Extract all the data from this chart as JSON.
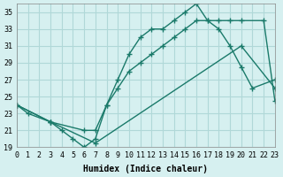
{
  "xlabel": "Humidex (Indice chaleur)",
  "ylabel": "",
  "bg_color": "#d6f0f0",
  "grid_color": "#b0d8d8",
  "line_color": "#1a7a6a",
  "xlim": [
    0,
    23
  ],
  "ylim": [
    19,
    36
  ],
  "xticks": [
    0,
    1,
    2,
    3,
    4,
    5,
    6,
    7,
    8,
    9,
    10,
    11,
    12,
    13,
    14,
    15,
    16,
    17,
    18,
    19,
    20,
    21,
    22,
    23
  ],
  "yticks": [
    19,
    21,
    23,
    25,
    27,
    29,
    31,
    33,
    35
  ],
  "line1_x": [
    0,
    1,
    3,
    4,
    5,
    6,
    7,
    8,
    9,
    10,
    11,
    12,
    13,
    14,
    15,
    16,
    17,
    18,
    19,
    20,
    21,
    23
  ],
  "line1_y": [
    24,
    23,
    22,
    21,
    20,
    19,
    20,
    24,
    27,
    30,
    32,
    33,
    33,
    34,
    35,
    36,
    34,
    33,
    31,
    28.5,
    26,
    27
  ],
  "line2_x": [
    0,
    3,
    6,
    7,
    8,
    9,
    10,
    11,
    12,
    13,
    14,
    15,
    16,
    17,
    18,
    19,
    20,
    22,
    23
  ],
  "line2_y": [
    24,
    22,
    21,
    21,
    24,
    26,
    28,
    29,
    30,
    31,
    32,
    33,
    34,
    34,
    34,
    34,
    34,
    34,
    24.5
  ],
  "line3_x": [
    0,
    3,
    7,
    20,
    23
  ],
  "line3_y": [
    24,
    22,
    19.5,
    31,
    26
  ]
}
